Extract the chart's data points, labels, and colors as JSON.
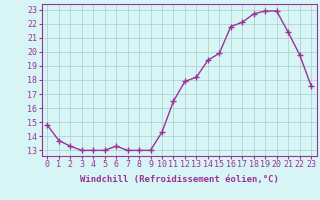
{
  "x": [
    0,
    1,
    2,
    3,
    4,
    5,
    6,
    7,
    8,
    9,
    10,
    11,
    12,
    13,
    14,
    15,
    16,
    17,
    18,
    19,
    20,
    21,
    22,
    23
  ],
  "y": [
    14.8,
    13.7,
    13.3,
    13.0,
    13.0,
    13.0,
    13.3,
    13.0,
    13.0,
    13.0,
    14.3,
    16.5,
    17.9,
    18.2,
    19.4,
    19.9,
    21.8,
    22.1,
    22.7,
    22.9,
    22.9,
    21.4,
    19.8,
    17.6
  ],
  "line_color": "#993399",
  "marker": "+",
  "marker_size": 4,
  "marker_linewidth": 1.0,
  "linewidth": 1.0,
  "background_color": "#d8f5f5",
  "grid_color": "#aacccc",
  "xlabel": "Windchill (Refroidissement éolien,°C)",
  "xlabel_fontsize": 6.5,
  "ylabel_ticks": [
    13,
    14,
    15,
    16,
    17,
    18,
    19,
    20,
    21,
    22,
    23
  ],
  "xlim": [
    -0.5,
    23.5
  ],
  "ylim": [
    12.6,
    23.4
  ],
  "tick_fontsize": 6.0,
  "label_color": "#993399"
}
